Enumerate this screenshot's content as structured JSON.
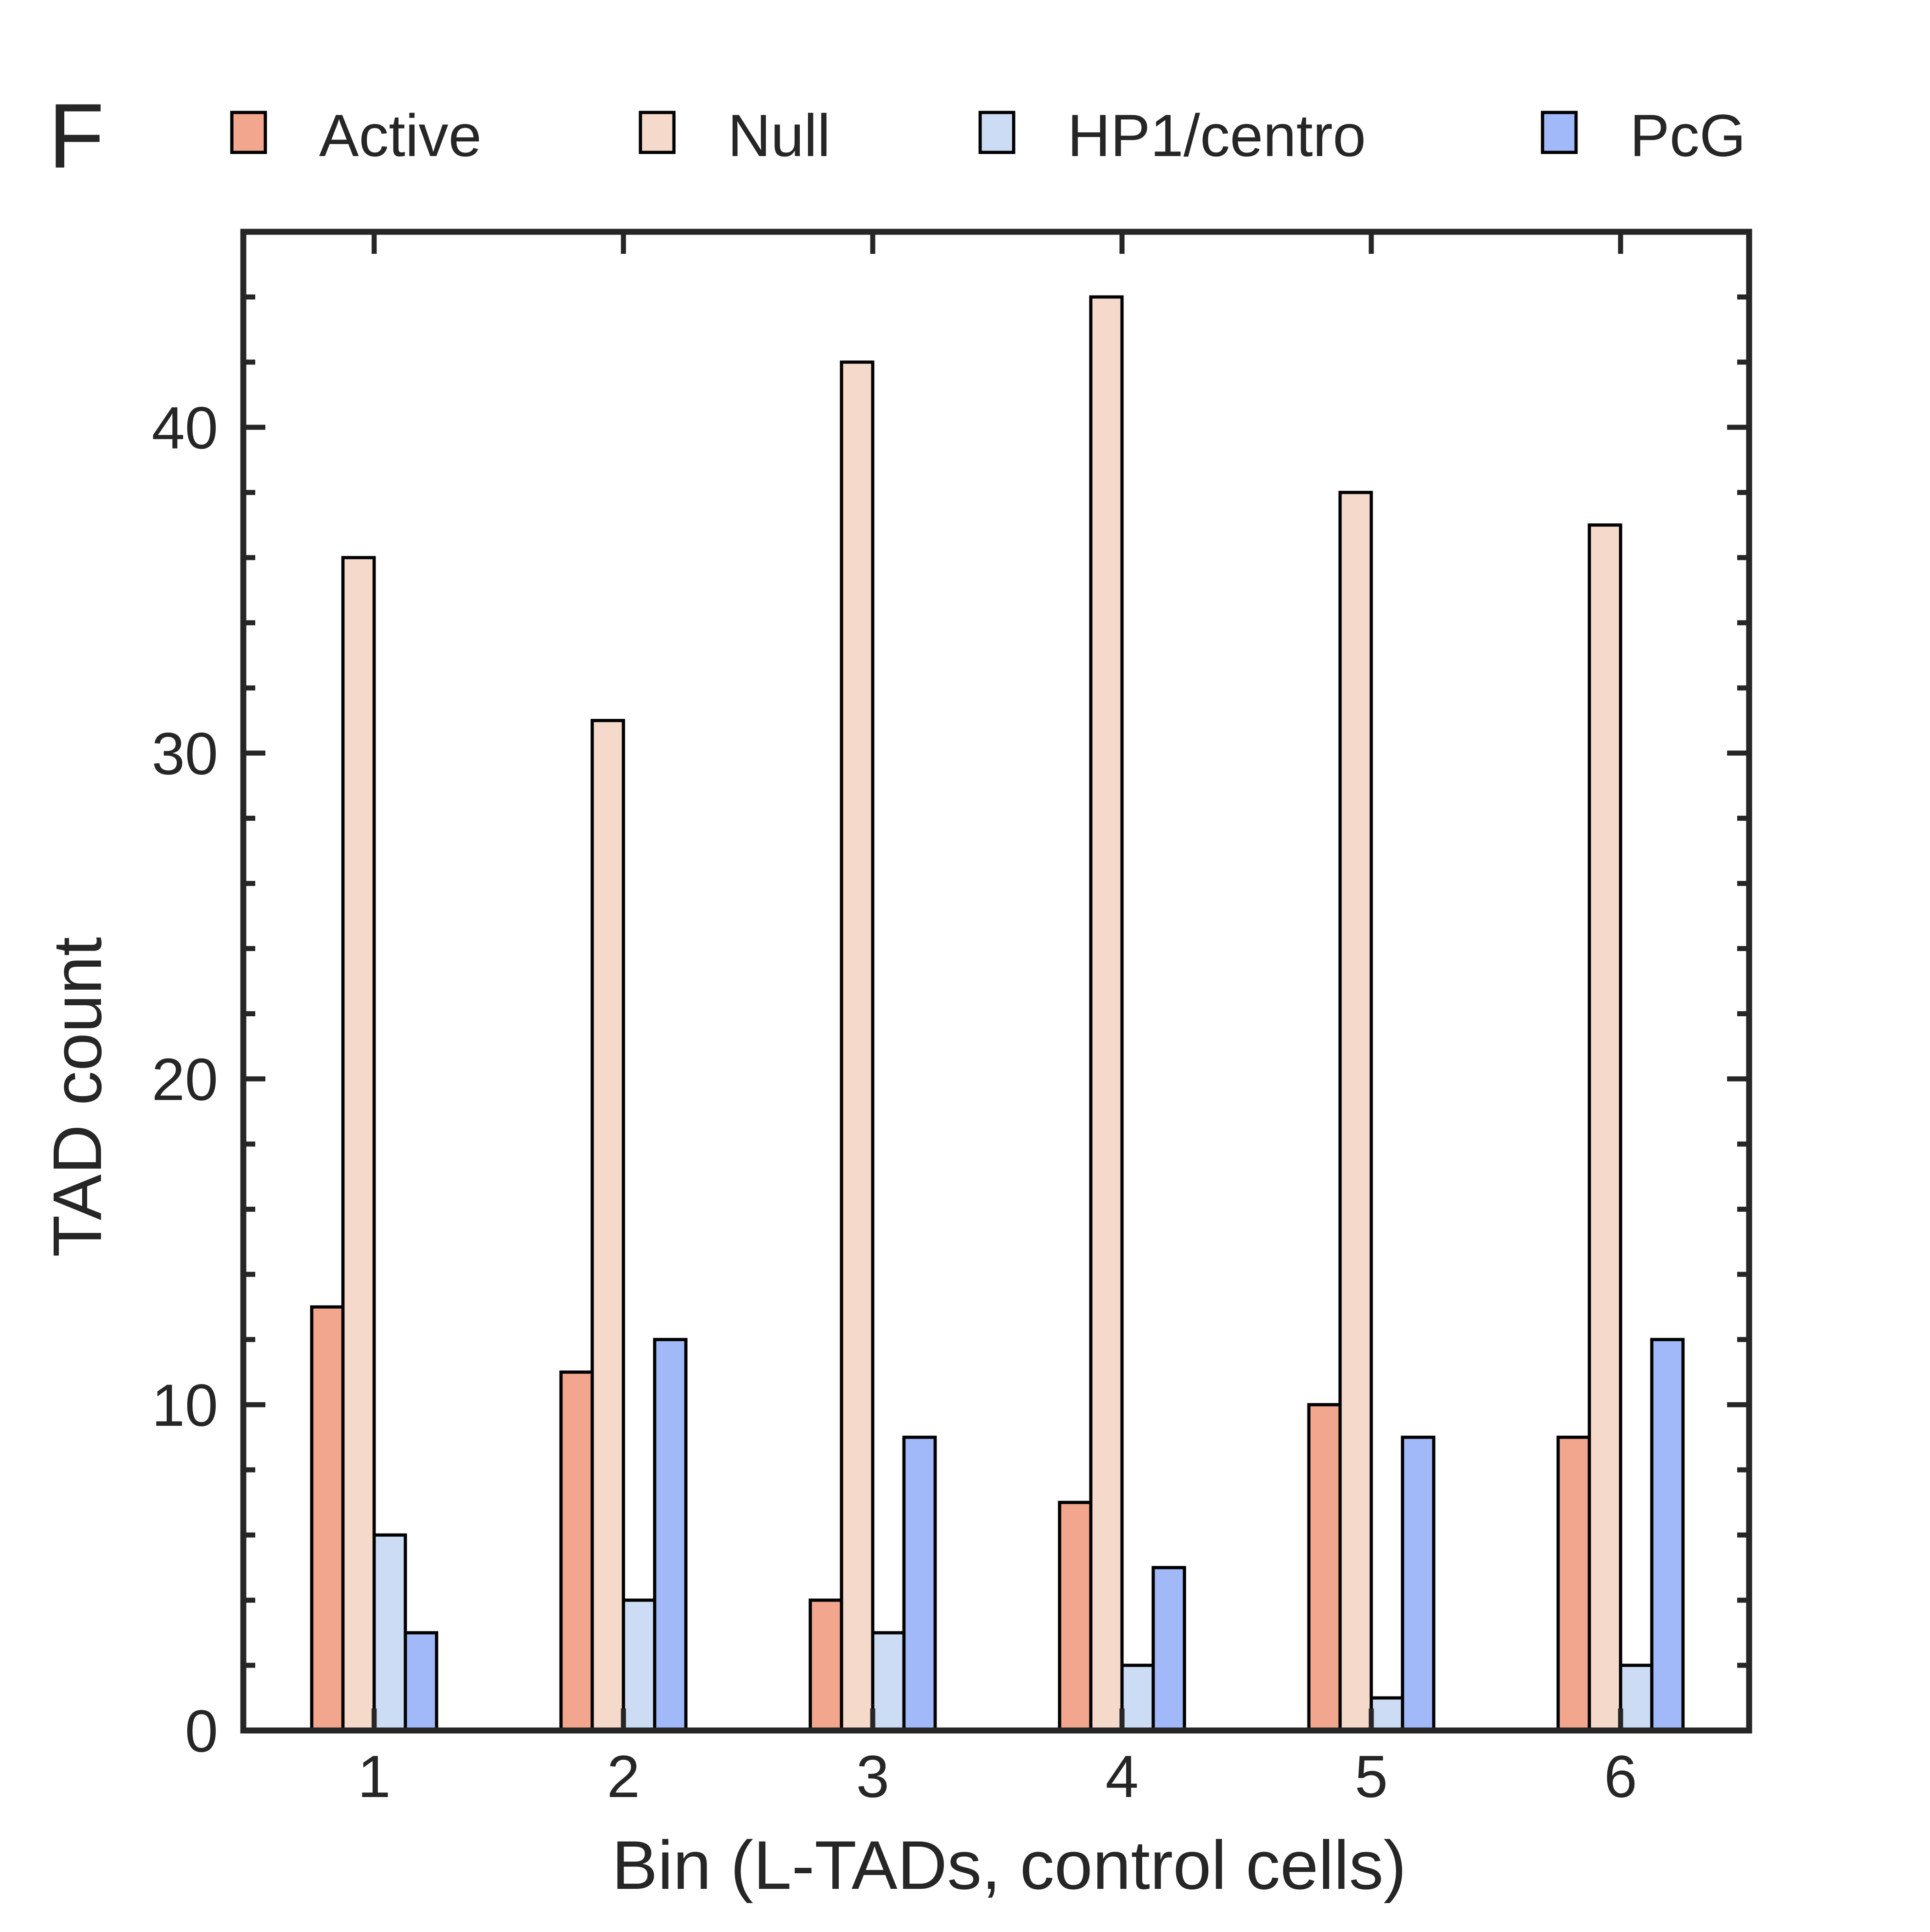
{
  "panel_label": "F",
  "chart_data": {
    "type": "bar",
    "title": "",
    "xlabel": "Bin (L-TADs, control cells)",
    "ylabel": "TAD count",
    "categories": [
      "1",
      "2",
      "3",
      "4",
      "5",
      "6"
    ],
    "ylim": [
      0,
      46
    ],
    "yticks": [
      "0",
      "10",
      "20",
      "30",
      "40"
    ],
    "grid": false,
    "legend_position": "top",
    "series": [
      {
        "name": "Active",
        "color": "#f2a68e",
        "values": [
          13,
          11,
          4,
          7,
          10,
          9
        ]
      },
      {
        "name": "Null",
        "color": "#f5d9cb",
        "values": [
          36,
          31,
          42,
          44,
          38,
          37
        ]
      },
      {
        "name": "HP1/centro",
        "color": "#cddcf5",
        "values": [
          6,
          4,
          3,
          2,
          1,
          2
        ]
      },
      {
        "name": "PcG",
        "color": "#a1b9f8",
        "values": [
          3,
          12,
          9,
          5,
          9,
          12
        ]
      }
    ]
  }
}
